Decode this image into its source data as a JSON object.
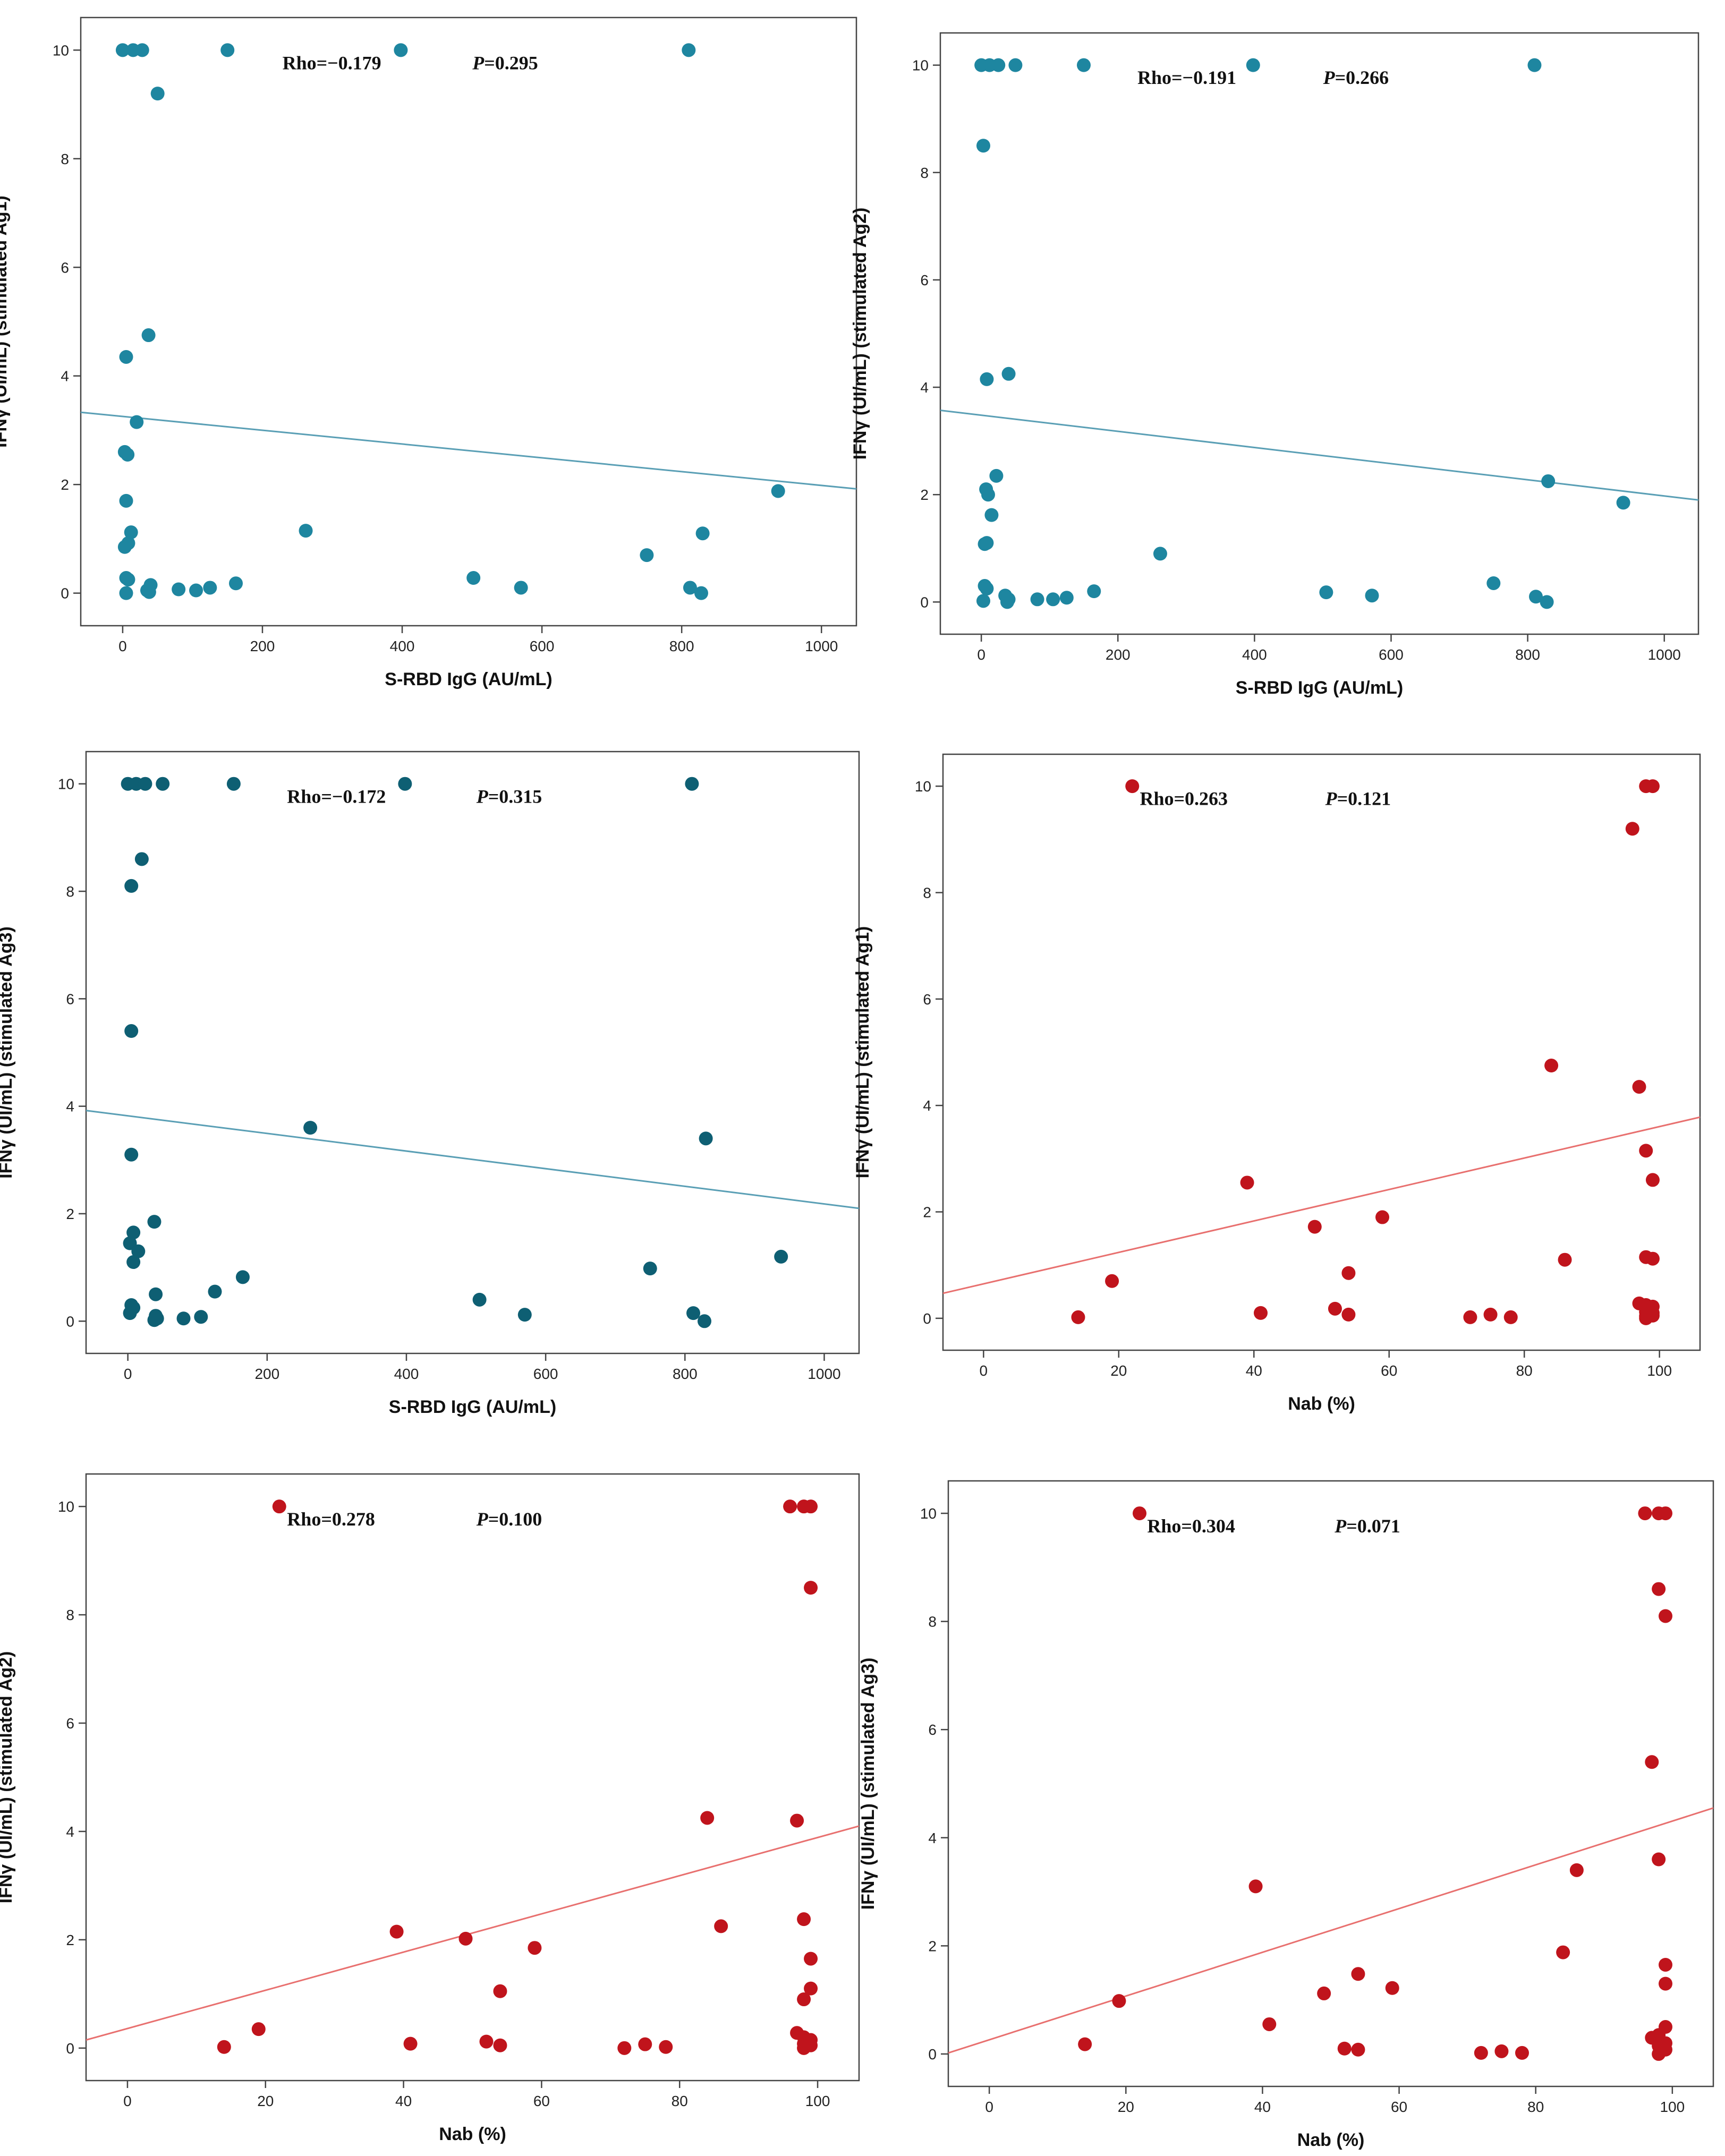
{
  "figure": {
    "panel_count": 6
  },
  "chart_data": [
    {
      "id": "p1",
      "type": "scatter",
      "title": "",
      "xlabel": "S-RBD IgG (AU/mL)",
      "ylabel": "IFNγ (UI/mL) (stimulated Ag1)",
      "xlim": [
        -60,
        1050
      ],
      "ylim": [
        -0.6,
        10.6
      ],
      "xticks": [
        0,
        200,
        400,
        600,
        800,
        1000
      ],
      "yticks": [
        0,
        2,
        4,
        6,
        8,
        10
      ],
      "annotation": {
        "rho_label": "Rho=−0.179",
        "p_prefix": "P",
        "p_value": "=0.295"
      },
      "point_color": "#1e86a0",
      "line_color": "#5a9fb5",
      "fit_line": {
        "x": [
          -60,
          1050
        ],
        "y": [
          3.33,
          1.92
        ]
      },
      "points": [
        [
          0,
          10
        ],
        [
          15,
          10
        ],
        [
          28,
          10
        ],
        [
          150,
          10
        ],
        [
          398,
          10
        ],
        [
          810,
          10
        ],
        [
          50,
          9.2
        ],
        [
          37,
          4.75
        ],
        [
          5,
          4.35
        ],
        [
          20,
          3.15
        ],
        [
          3,
          2.6
        ],
        [
          7,
          2.55
        ],
        [
          5,
          1.7
        ],
        [
          12,
          1.12
        ],
        [
          262,
          1.15
        ],
        [
          938,
          1.88
        ],
        [
          830,
          1.1
        ],
        [
          750,
          0.7
        ],
        [
          8,
          0.92
        ],
        [
          3,
          0.85
        ],
        [
          5,
          0.28
        ],
        [
          8,
          0.25
        ],
        [
          35,
          0.05
        ],
        [
          40,
          0.15
        ],
        [
          38,
          0.02
        ],
        [
          5,
          0.0
        ],
        [
          80,
          0.07
        ],
        [
          105,
          0.05
        ],
        [
          125,
          0.1
        ],
        [
          162,
          0.18
        ],
        [
          502,
          0.28
        ],
        [
          570,
          0.1
        ],
        [
          812,
          0.1
        ],
        [
          828,
          0.0
        ]
      ]
    },
    {
      "id": "p2",
      "type": "scatter",
      "title": "",
      "xlabel": "S-RBD IgG (AU/mL)",
      "ylabel": "IFNγ (UI/mL) (stimulated Ag2)",
      "xlim": [
        -60,
        1050
      ],
      "ylim": [
        -0.6,
        10.6
      ],
      "xticks": [
        0,
        200,
        400,
        600,
        800,
        1000
      ],
      "yticks": [
        0,
        2,
        4,
        6,
        8,
        10
      ],
      "annotation": {
        "rho_label": "Rho=−0.191",
        "p_prefix": "P",
        "p_value": "=0.266"
      },
      "point_color": "#1e86a0",
      "line_color": "#5a9fb5",
      "fit_line": {
        "x": [
          -60,
          1050
        ],
        "y": [
          3.57,
          1.9
        ]
      },
      "points": [
        [
          0,
          10
        ],
        [
          12,
          10
        ],
        [
          25,
          10
        ],
        [
          50,
          10
        ],
        [
          150,
          10
        ],
        [
          398,
          10
        ],
        [
          810,
          10
        ],
        [
          3,
          8.5
        ],
        [
          40,
          4.25
        ],
        [
          8,
          4.15
        ],
        [
          22,
          2.35
        ],
        [
          7,
          2.1
        ],
        [
          10,
          2.0
        ],
        [
          15,
          1.62
        ],
        [
          5,
          1.08
        ],
        [
          8,
          1.1
        ],
        [
          262,
          0.9
        ],
        [
          830,
          2.25
        ],
        [
          940,
          1.85
        ],
        [
          750,
          0.35
        ],
        [
          5,
          0.3
        ],
        [
          8,
          0.25
        ],
        [
          35,
          0.12
        ],
        [
          40,
          0.05
        ],
        [
          38,
          0.0
        ],
        [
          3,
          0.02
        ],
        [
          82,
          0.05
        ],
        [
          105,
          0.05
        ],
        [
          125,
          0.08
        ],
        [
          165,
          0.2
        ],
        [
          505,
          0.18
        ],
        [
          572,
          0.12
        ],
        [
          812,
          0.1
        ],
        [
          828,
          0.0
        ]
      ]
    },
    {
      "id": "p3",
      "type": "scatter",
      "title": "",
      "xlabel": "S-RBD IgG (AU/mL)",
      "ylabel": "IFNγ (UI/mL) (stimulated Ag3)",
      "xlim": [
        -60,
        1050
      ],
      "ylim": [
        -0.6,
        10.6
      ],
      "xticks": [
        0,
        200,
        400,
        600,
        800,
        1000
      ],
      "yticks": [
        0,
        2,
        4,
        6,
        8,
        10
      ],
      "annotation": {
        "rho_label": "Rho=−0.172",
        "p_prefix": "P",
        "p_value": "=0.315"
      },
      "point_color": "#0e5f73",
      "line_color": "#5a9fb5",
      "fit_line": {
        "x": [
          -60,
          1050
        ],
        "y": [
          3.92,
          2.1
        ]
      },
      "points": [
        [
          0,
          10
        ],
        [
          12,
          10
        ],
        [
          25,
          10
        ],
        [
          50,
          10
        ],
        [
          152,
          10
        ],
        [
          398,
          10
        ],
        [
          810,
          10
        ],
        [
          20,
          8.6
        ],
        [
          5,
          8.1
        ],
        [
          5,
          5.4
        ],
        [
          5,
          3.1
        ],
        [
          262,
          3.6
        ],
        [
          830,
          3.4
        ],
        [
          38,
          1.85
        ],
        [
          8,
          1.65
        ],
        [
          3,
          1.45
        ],
        [
          15,
          1.3
        ],
        [
          8,
          1.1
        ],
        [
          938,
          1.2
        ],
        [
          750,
          0.98
        ],
        [
          165,
          0.82
        ],
        [
          125,
          0.55
        ],
        [
          40,
          0.5
        ],
        [
          505,
          0.4
        ],
        [
          5,
          0.3
        ],
        [
          8,
          0.25
        ],
        [
          3,
          0.15
        ],
        [
          40,
          0.1
        ],
        [
          38,
          0.02
        ],
        [
          42,
          0.05
        ],
        [
          80,
          0.05
        ],
        [
          105,
          0.08
        ],
        [
          570,
          0.12
        ],
        [
          812,
          0.15
        ],
        [
          828,
          0.0
        ]
      ]
    },
    {
      "id": "p4",
      "type": "scatter",
      "title": "",
      "xlabel": "Nab (%)",
      "ylabel": "IFNγ (UI/mL) (stimulated Ag1)",
      "xlim": [
        -6,
        106
      ],
      "ylim": [
        -0.6,
        10.6
      ],
      "xticks": [
        0,
        20,
        40,
        60,
        80,
        100
      ],
      "yticks": [
        0,
        2,
        4,
        6,
        8,
        10
      ],
      "annotation": {
        "rho_label": "Rho=0.263",
        "p_prefix": "P",
        "p_value": "=0.121"
      },
      "point_color": "#c0141c",
      "line_color": "#e8706f",
      "fit_line": {
        "x": [
          -6,
          106
        ],
        "y": [
          0.47,
          3.78
        ]
      },
      "points": [
        [
          22,
          10
        ],
        [
          98,
          10
        ],
        [
          99,
          10
        ],
        [
          96,
          9.2
        ],
        [
          84,
          4.75
        ],
        [
          97,
          4.35
        ],
        [
          98,
          3.15
        ],
        [
          99,
          2.6
        ],
        [
          39,
          2.55
        ],
        [
          59,
          1.9
        ],
        [
          49,
          1.72
        ],
        [
          86,
          1.1
        ],
        [
          98,
          1.15
        ],
        [
          99,
          1.12
        ],
        [
          19,
          0.7
        ],
        [
          54,
          0.85
        ],
        [
          97,
          0.28
        ],
        [
          98,
          0.25
        ],
        [
          99,
          0.22
        ],
        [
          52,
          0.18
        ],
        [
          41,
          0.1
        ],
        [
          54,
          0.07
        ],
        [
          14,
          0.02
        ],
        [
          72,
          0.02
        ],
        [
          75,
          0.07
        ],
        [
          78,
          0.02
        ],
        [
          98,
          0.12
        ],
        [
          98,
          0.0
        ],
        [
          99,
          0.05
        ],
        [
          99,
          0.1
        ],
        [
          98,
          0.04
        ]
      ]
    },
    {
      "id": "p5",
      "type": "scatter",
      "title": "",
      "xlabel": "Nab (%)",
      "ylabel": "IFNγ (UI/mL) (stimulated Ag2)",
      "xlim": [
        -6,
        106
      ],
      "ylim": [
        -0.6,
        10.6
      ],
      "xticks": [
        0,
        20,
        40,
        60,
        80,
        100
      ],
      "yticks": [
        0,
        2,
        4,
        6,
        8,
        10
      ],
      "annotation": {
        "rho_label": "Rho=0.278",
        "p_prefix": "P",
        "p_value": "=0.100"
      },
      "point_color": "#c0141c",
      "line_color": "#e8706f",
      "fit_line": {
        "x": [
          -6,
          106
        ],
        "y": [
          0.15,
          4.1
        ]
      },
      "points": [
        [
          22,
          10
        ],
        [
          96,
          10
        ],
        [
          98,
          10
        ],
        [
          99,
          10
        ],
        [
          99,
          8.5
        ],
        [
          84,
          4.25
        ],
        [
          97,
          4.2
        ],
        [
          98,
          2.38
        ],
        [
          86,
          2.25
        ],
        [
          39,
          2.15
        ],
        [
          49,
          2.02
        ],
        [
          59,
          1.85
        ],
        [
          99,
          1.65
        ],
        [
          54,
          1.05
        ],
        [
          99,
          1.1
        ],
        [
          98,
          0.9
        ],
        [
          19,
          0.35
        ],
        [
          97,
          0.28
        ],
        [
          98,
          0.2
        ],
        [
          99,
          0.15
        ],
        [
          52,
          0.12
        ],
        [
          41,
          0.08
        ],
        [
          54,
          0.05
        ],
        [
          14,
          0.02
        ],
        [
          72,
          0.0
        ],
        [
          75,
          0.07
        ],
        [
          78,
          0.02
        ],
        [
          98,
          0.0
        ],
        [
          99,
          0.05
        ],
        [
          98,
          0.08
        ]
      ]
    },
    {
      "id": "p6",
      "type": "scatter",
      "title": "",
      "xlabel": "Nab (%)",
      "ylabel": "IFNγ (UI/mL) (stimulated Ag3)",
      "xlim": [
        -6,
        106
      ],
      "ylim": [
        -0.6,
        10.6
      ],
      "xticks": [
        0,
        20,
        40,
        60,
        80,
        100
      ],
      "yticks": [
        0,
        2,
        4,
        6,
        8,
        10
      ],
      "annotation": {
        "rho_label": "Rho=0.304",
        "p_prefix": "P",
        "p_value": "=0.071"
      },
      "point_color": "#c0141c",
      "line_color": "#e8706f",
      "fit_line": {
        "x": [
          -6,
          106
        ],
        "y": [
          0.02,
          4.55
        ]
      },
      "points": [
        [
          22,
          10
        ],
        [
          96,
          10
        ],
        [
          98,
          10
        ],
        [
          99,
          10
        ],
        [
          98,
          8.6
        ],
        [
          99,
          8.1
        ],
        [
          97,
          5.4
        ],
        [
          98,
          3.6
        ],
        [
          86,
          3.4
        ],
        [
          39,
          3.1
        ],
        [
          84,
          1.88
        ],
        [
          99,
          1.65
        ],
        [
          54,
          1.48
        ],
        [
          99,
          1.3
        ],
        [
          59,
          1.22
        ],
        [
          49,
          1.12
        ],
        [
          19,
          0.98
        ],
        [
          41,
          0.55
        ],
        [
          99,
          0.5
        ],
        [
          98,
          0.35
        ],
        [
          97,
          0.3
        ],
        [
          99,
          0.2
        ],
        [
          14,
          0.18
        ],
        [
          52,
          0.1
        ],
        [
          54,
          0.08
        ],
        [
          98,
          0.15
        ],
        [
          72,
          0.02
        ],
        [
          75,
          0.05
        ],
        [
          78,
          0.02
        ],
        [
          98,
          0.0
        ],
        [
          99,
          0.08
        ]
      ]
    }
  ]
}
